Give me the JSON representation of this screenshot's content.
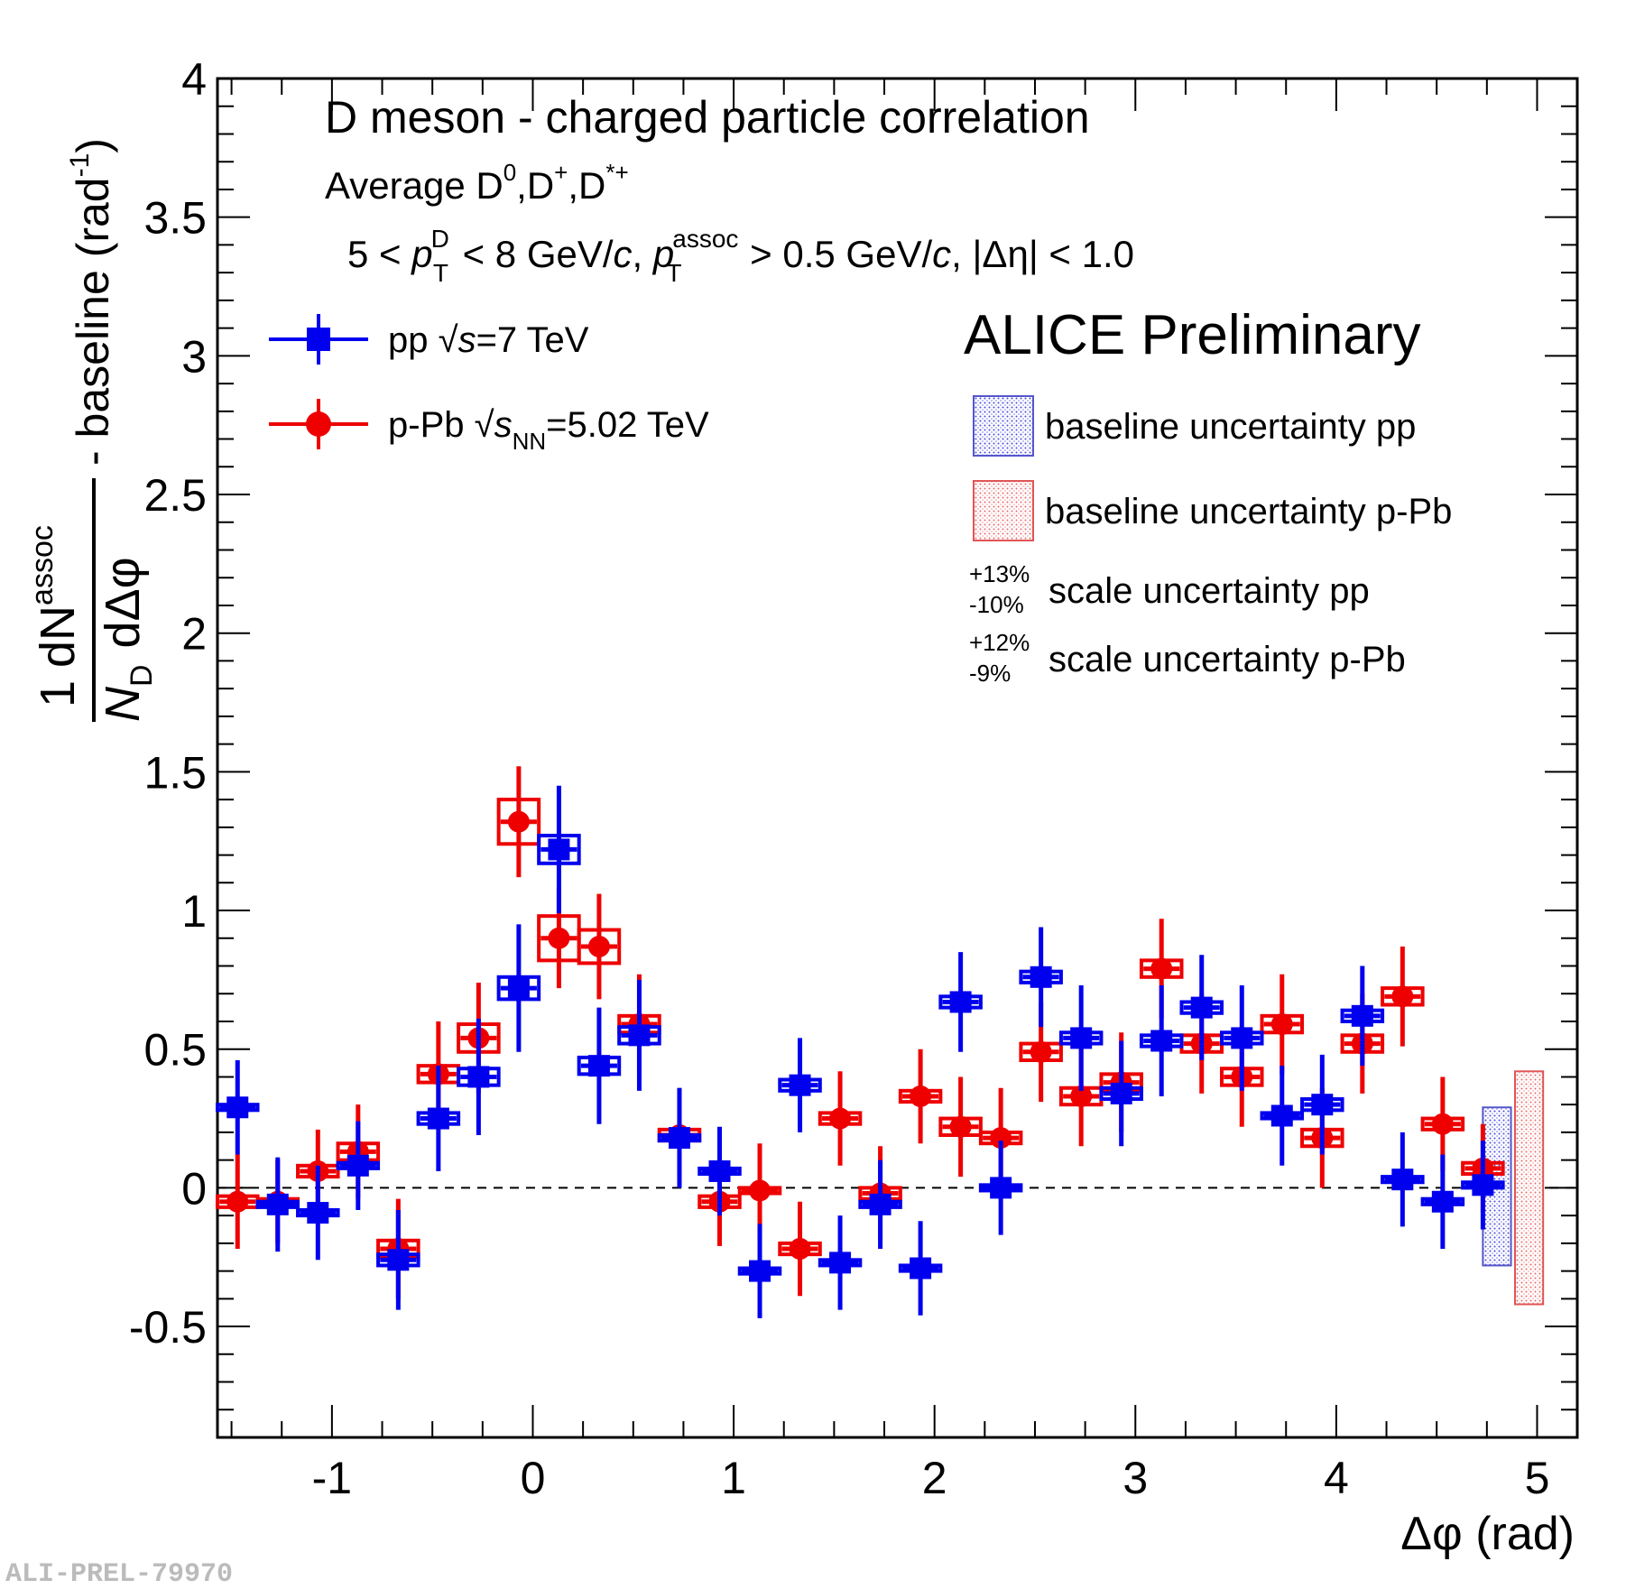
{
  "chart_data": {
    "type": "scatter",
    "title": "D meson  - charged particle correlation",
    "subtitle_lines": {
      "average": "Average D",
      "average_sup0": "0",
      "average_dplus": ",D",
      "average_sup_plus": "+",
      "average_dstar": ",D",
      "average_sup_star": "*+",
      "kin_a": "5 < ",
      "kin_p": "p",
      "kin_sup_D": "D",
      "kin_sub_T": "T",
      "kin_b": " < 8 GeV/",
      "kin_c": "c",
      "kin_comma": ", ",
      "kin_sup_assoc": "assoc",
      "kin_d": " > 0.5 GeV/",
      "kin_e": ", |Δη| < 1.0"
    },
    "experiment_label": "ALICE Preliminary",
    "watermark": "ALI-PREL-79970",
    "xlabel": "Δφ (rad)",
    "ylabel": {
      "frac_num_1": "1",
      "frac_num_dN": "dN",
      "frac_num_sup": "assoc",
      "frac_den_N": "N",
      "frac_den_sub": "D",
      "frac_den_dphi": "dΔφ",
      "rest": "- baseline (rad",
      "rest_sup": "-1",
      "rest_close": ")"
    },
    "xlim": [
      -1.57,
      5.2
    ],
    "ylim": [
      -0.9,
      4.0
    ],
    "x_ticks": [
      -1,
      0,
      1,
      2,
      3,
      4,
      5
    ],
    "x_tick_labels": [
      "-1",
      "0",
      "1",
      "2",
      "3",
      "4",
      "5"
    ],
    "y_ticks": [
      -0.5,
      0,
      0.5,
      1,
      1.5,
      2,
      2.5,
      3,
      3.5,
      4
    ],
    "y_tick_labels": [
      "-0.5",
      "0",
      "0.5",
      "1",
      "1.5",
      "2",
      "2.5",
      "3",
      "3.5",
      "4"
    ],
    "bin_halfwidth": 0.1,
    "series": [
      {
        "name": "pp",
        "legend": {
          "a": "pp  ",
          "s": "s",
          "b": "=7 TeV"
        },
        "color": "#0000ee",
        "marker": "square",
        "x": [
          -1.47,
          -1.27,
          -1.07,
          -0.87,
          -0.67,
          -0.47,
          -0.27,
          -0.07,
          0.13,
          0.33,
          0.53,
          0.73,
          0.93,
          1.13,
          1.33,
          1.53,
          1.73,
          1.93,
          2.13,
          2.33,
          2.53,
          2.73,
          2.93,
          3.13,
          3.33,
          3.53,
          3.73,
          3.93,
          4.13,
          4.33,
          4.53,
          4.73
        ],
        "y": [
          0.29,
          -0.06,
          -0.09,
          0.08,
          -0.26,
          0.25,
          0.4,
          0.72,
          1.22,
          0.44,
          0.55,
          0.18,
          0.06,
          -0.3,
          0.37,
          -0.27,
          -0.06,
          -0.29,
          0.67,
          0.0,
          0.76,
          0.54,
          0.34,
          0.53,
          0.65,
          0.54,
          0.26,
          0.3,
          0.62,
          0.03,
          -0.05,
          0.01
        ],
        "stat_err": [
          0.17,
          0.17,
          0.17,
          0.16,
          0.18,
          0.19,
          0.21,
          0.23,
          0.23,
          0.21,
          0.2,
          0.18,
          0.16,
          0.17,
          0.17,
          0.17,
          0.16,
          0.17,
          0.18,
          0.17,
          0.18,
          0.19,
          0.19,
          0.2,
          0.19,
          0.19,
          0.18,
          0.18,
          0.18,
          0.17,
          0.17,
          0.16
        ],
        "syst_err": [
          0.01,
          0.01,
          0.01,
          0.01,
          0.02,
          0.02,
          0.03,
          0.04,
          0.05,
          0.03,
          0.03,
          0.01,
          0.01,
          0.01,
          0.02,
          0.01,
          0.01,
          0.01,
          0.02,
          0.01,
          0.02,
          0.02,
          0.02,
          0.02,
          0.02,
          0.02,
          0.01,
          0.02,
          0.02,
          0.01,
          0.01,
          0.01
        ],
        "baseline_unc": [
          -0.28,
          0.29
        ]
      },
      {
        "name": "p-Pb",
        "legend": {
          "a": "p-Pb ",
          "s": "s",
          "sub": "NN",
          "b": "=5.02 TeV"
        },
        "color": "#ee0000",
        "marker": "circle",
        "x": [
          -1.47,
          -1.27,
          -1.07,
          -0.87,
          -0.67,
          -0.47,
          -0.27,
          -0.07,
          0.13,
          0.33,
          0.53,
          0.73,
          0.93,
          1.13,
          1.33,
          1.53,
          1.73,
          1.93,
          2.13,
          2.33,
          2.53,
          2.73,
          2.93,
          3.13,
          3.33,
          3.53,
          3.73,
          3.93,
          4.13,
          4.33,
          4.53,
          4.73
        ],
        "y": [
          -0.05,
          -0.05,
          0.06,
          0.13,
          -0.22,
          0.41,
          0.54,
          1.32,
          0.9,
          0.87,
          0.59,
          0.19,
          -0.05,
          -0.01,
          -0.22,
          0.25,
          -0.02,
          0.33,
          0.22,
          0.18,
          0.49,
          0.33,
          0.38,
          0.79,
          0.52,
          0.4,
          0.59,
          0.18,
          0.52,
          0.69,
          0.23,
          0.07
        ],
        "stat_err": [
          0.17,
          0.15,
          0.15,
          0.17,
          0.18,
          0.19,
          0.2,
          0.2,
          0.18,
          0.19,
          0.18,
          0.17,
          0.16,
          0.17,
          0.17,
          0.17,
          0.17,
          0.17,
          0.18,
          0.18,
          0.18,
          0.18,
          0.18,
          0.18,
          0.18,
          0.18,
          0.18,
          0.18,
          0.18,
          0.18,
          0.17,
          0.16
        ],
        "syst_err": [
          0.02,
          0.01,
          0.02,
          0.03,
          0.03,
          0.03,
          0.05,
          0.08,
          0.08,
          0.06,
          0.03,
          0.02,
          0.02,
          0.01,
          0.02,
          0.02,
          0.02,
          0.02,
          0.03,
          0.02,
          0.03,
          0.03,
          0.03,
          0.03,
          0.03,
          0.03,
          0.03,
          0.03,
          0.03,
          0.03,
          0.02,
          0.02
        ],
        "baseline_unc": [
          -0.42,
          0.42
        ]
      }
    ],
    "legend_boxes": [
      {
        "label": "baseline uncertainty pp",
        "color": "#5555cc"
      },
      {
        "label": "baseline uncertainty p-Pb",
        "color": "#e05555"
      }
    ],
    "scale_uncertainties": [
      {
        "up": "+13%",
        "down": "-10%",
        "label": "scale uncertainty pp"
      },
      {
        "up": "+12%",
        "down": "-9%",
        "label": "scale uncertainty p-Pb"
      }
    ],
    "zero_line": true
  }
}
